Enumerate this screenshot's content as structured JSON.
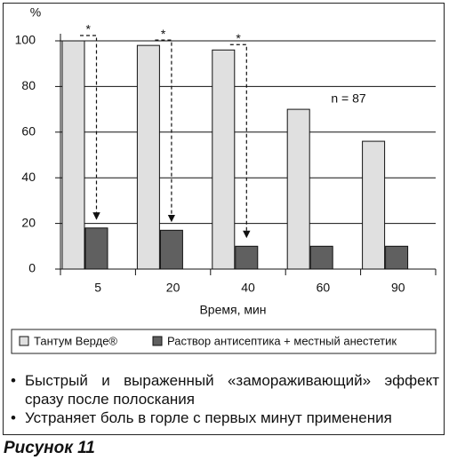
{
  "chart_data": {
    "type": "bar",
    "y_unit_label": "%",
    "x_label": "Время, мин",
    "categories": [
      "5",
      "20",
      "40",
      "60",
      "90"
    ],
    "series": [
      {
        "name": "Тантум Верде®",
        "color": "#e0e0e0",
        "values": [
          100,
          98,
          96,
          70,
          56
        ]
      },
      {
        "name": "Раствор антисептика + местный анестетик",
        "color": "#606060",
        "values": [
          18,
          17,
          10,
          10,
          10
        ]
      }
    ],
    "ylim": [
      0,
      100
    ],
    "yticks": [
      0,
      20,
      40,
      60,
      80,
      100
    ],
    "grid": true,
    "annotation": "n = 87",
    "significance_markers": [
      "*",
      "*",
      "*"
    ]
  },
  "bullets": [
    "Быстрый и выраженный «замораживающий» эффект сразу после полоскания",
    "Устраняет боль в горле с первых минут применения"
  ],
  "caption": "Рисунок 11"
}
